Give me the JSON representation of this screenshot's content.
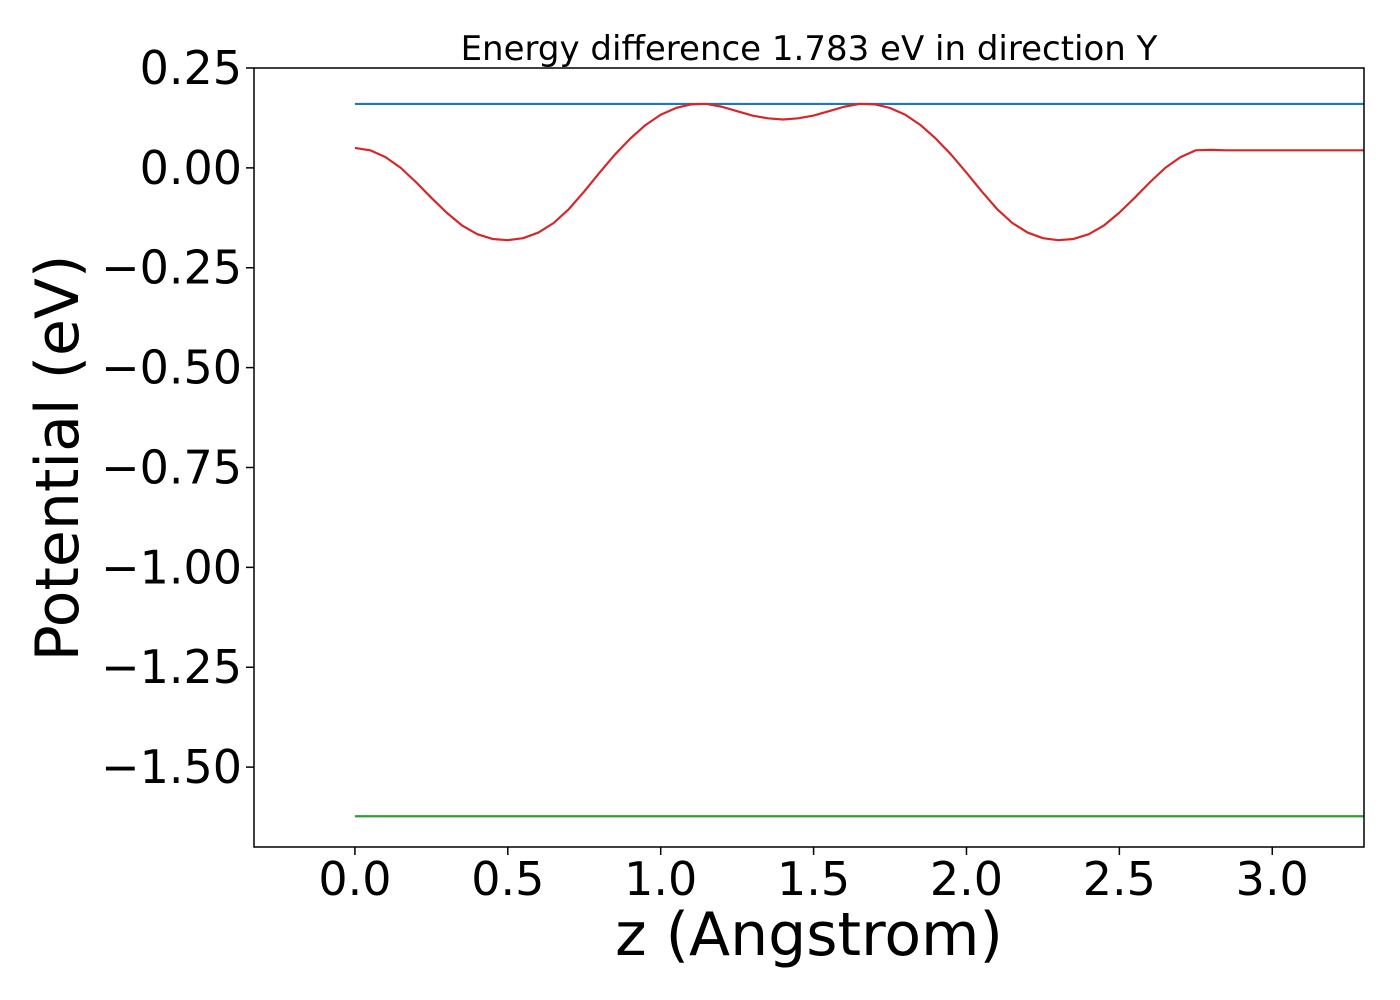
{
  "chart_data": {
    "type": "line",
    "title": "Energy difference 1.783 eV in direction Y",
    "xlabel": "z (Angstrom)",
    "ylabel": "Potential (eV)",
    "xlim": [
      -0.33,
      3.3
    ],
    "ylim": [
      -1.7,
      0.25
    ],
    "x_ticks": [
      0.0,
      0.5,
      1.0,
      1.5,
      2.0,
      2.5,
      3.0
    ],
    "x_tick_labels": [
      "0.0",
      "0.5",
      "1.0",
      "1.5",
      "2.0",
      "2.5",
      "3.0"
    ],
    "y_ticks": [
      0.25,
      0.0,
      -0.25,
      -0.5,
      -0.75,
      -1.0,
      -1.25,
      -1.5
    ],
    "y_tick_labels": [
      "0.25",
      "0.00",
      "−0.25",
      "−0.50",
      "−0.75",
      "−1.00",
      "−1.25",
      "−1.50"
    ],
    "grid": false,
    "series": [
      {
        "color": "#1f77b4",
        "x": [
          0.0,
          3.3
        ],
        "y": [
          0.16,
          0.16
        ]
      },
      {
        "color": "#2ca02c",
        "x": [
          0.0,
          3.3
        ],
        "y": [
          -1.623,
          -1.623
        ]
      },
      {
        "color": "#d62728",
        "x": [
          0.0,
          0.05,
          0.1,
          0.15,
          0.2,
          0.25,
          0.3,
          0.35,
          0.4,
          0.45,
          0.5,
          0.55,
          0.6,
          0.65,
          0.7,
          0.75,
          0.8,
          0.85,
          0.9,
          0.95,
          1.0,
          1.05,
          1.1,
          1.15,
          1.2,
          1.25,
          1.3,
          1.35,
          1.4,
          1.45,
          1.5,
          1.55,
          1.6,
          1.65,
          1.7,
          1.75,
          1.8,
          1.85,
          1.9,
          1.95,
          2.0,
          2.05,
          2.1,
          2.15,
          2.2,
          2.25,
          2.3,
          2.35,
          2.4,
          2.45,
          2.5,
          2.55,
          2.6,
          2.65,
          2.7,
          2.75,
          2.8,
          2.85,
          2.9,
          2.95,
          3.0,
          3.05,
          3.1,
          3.15,
          3.2,
          3.25,
          3.3
        ],
        "y": [
          0.05,
          0.044,
          0.027,
          0.0,
          -0.036,
          -0.075,
          -0.112,
          -0.144,
          -0.166,
          -0.178,
          -0.181,
          -0.176,
          -0.162,
          -0.138,
          -0.103,
          -0.059,
          -0.012,
          0.033,
          0.073,
          0.107,
          0.133,
          0.15,
          0.159,
          0.16,
          0.153,
          0.142,
          0.131,
          0.124,
          0.121,
          0.124,
          0.131,
          0.142,
          0.153,
          0.16,
          0.159,
          0.15,
          0.133,
          0.107,
          0.073,
          0.033,
          -0.012,
          -0.059,
          -0.103,
          -0.138,
          -0.162,
          -0.176,
          -0.181,
          -0.178,
          -0.166,
          -0.144,
          -0.112,
          -0.075,
          -0.036,
          0.0,
          0.027,
          0.044,
          0.045,
          0.044,
          0.044,
          0.044,
          0.044,
          0.044,
          0.044,
          0.044,
          0.044,
          0.044,
          0.044
        ]
      }
    ]
  }
}
